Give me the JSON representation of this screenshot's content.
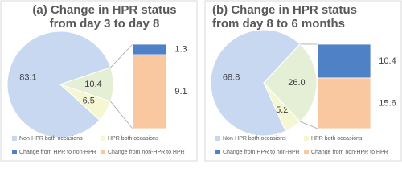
{
  "chart_data": [
    {
      "type": "pie-of-bar",
      "title": "(a) Change in HPR status from day 3 to day 8",
      "categories": [
        "Non-HPR both occasions",
        "HPR both occasions",
        null
      ],
      "values": [
        83.1,
        6.5,
        10.4
      ],
      "colors": [
        "#c9d8f1",
        "#f4f7d2",
        "#e5efd6"
      ],
      "breakdown": [
        {
          "name": "Change from HPR to non-HPR",
          "color": "#4f81c7",
          "value": 1.3
        },
        {
          "name": "Change from non-HPR to HPR",
          "color": "#f9c8a0",
          "value": 9.1
        }
      ]
    },
    {
      "type": "pie-of-bar",
      "title": "(b) Change in HPR status from day 8 to 6 months",
      "categories": [
        "Non-HPR both occasions",
        "HPR both occasions",
        null
      ],
      "values": [
        68.8,
        5.2,
        26
      ],
      "value_labels": [
        "68.8",
        "5.2",
        "26.0"
      ],
      "colors": [
        "#c9d8f1",
        "#f4f7d2",
        "#e5efd6"
      ],
      "breakdown": [
        {
          "name": "Change from HPR to non-HPR",
          "color": "#4f81c7",
          "value": 10.4
        },
        {
          "name": "Change from non-HPR to HPR",
          "color": "#f9c8a0",
          "value": 15.6
        }
      ]
    }
  ]
}
